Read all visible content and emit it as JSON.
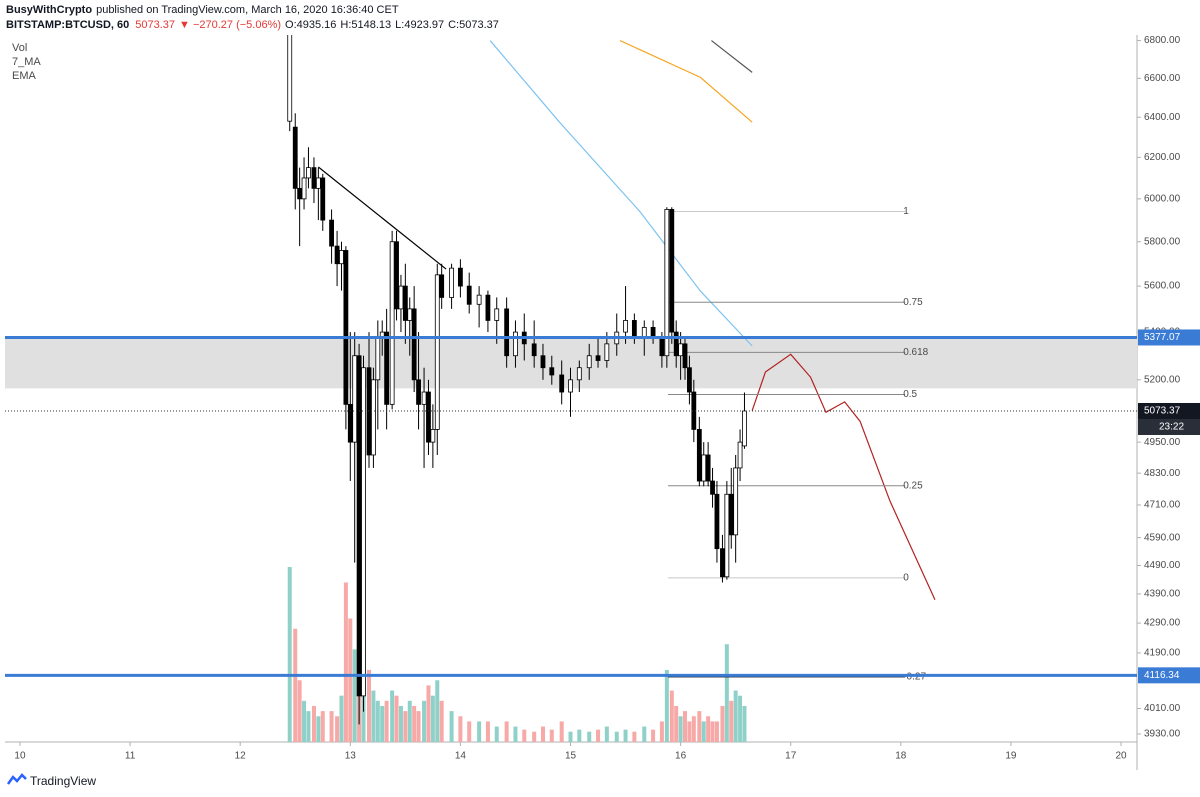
{
  "header": {
    "author": "BusyWithCrypto",
    "published": "published on TradingView.com, March 16, 2020 16:36:40 CET",
    "symbol": "BITSTAMP:BTCUSD, 60",
    "change": "▼ −270.27 (−5.06%)",
    "o": "O:4935.16",
    "h": "H:5148.13",
    "l": "L:4923.97",
    "c": "C:5073.37"
  },
  "chart_data": {
    "type": "candlestick",
    "log_scale": true,
    "legend": [
      "Vol",
      "7_MA",
      "EMA"
    ],
    "x": [
      12.45,
      12.5,
      12.54,
      12.58,
      12.62,
      12.67,
      12.71,
      12.75,
      12.83,
      12.88,
      12.92,
      12.96,
      13.0,
      13.04,
      13.08,
      13.12,
      13.17,
      13.21,
      13.25,
      13.29,
      13.33,
      13.38,
      13.42,
      13.46,
      13.5,
      13.54,
      13.58,
      13.62,
      13.67,
      13.71,
      13.75,
      13.79,
      13.83,
      13.92,
      14.0,
      14.08,
      14.17,
      14.25,
      14.33,
      14.42,
      14.5,
      14.58,
      14.67,
      14.75,
      14.83,
      14.92,
      15.0,
      15.08,
      15.17,
      15.25,
      15.33,
      15.42,
      15.5,
      15.58,
      15.67,
      15.75,
      15.83,
      15.875,
      15.92,
      15.96,
      16.0,
      16.04,
      16.08,
      16.12,
      16.17,
      16.21,
      16.25,
      16.29,
      16.33,
      16.38,
      16.42,
      16.46,
      16.5,
      16.54,
      16.58
    ],
    "open": [
      6380,
      6350,
      6050,
      6000,
      6100,
      6150,
      6050,
      6100,
      5900,
      5780,
      5700,
      5760,
      5100,
      4950,
      5300,
      4050,
      5250,
      4900,
      5200,
      5380,
      5400,
      5100,
      5800,
      5500,
      5600,
      5450,
      5500,
      5200,
      5100,
      5150,
      4950,
      5000,
      5650,
      5550,
      5680,
      5600,
      5520,
      5560,
      5450,
      5500,
      5300,
      5400,
      5350,
      5300,
      5250,
      5220,
      5150,
      5200,
      5250,
      5300,
      5280,
      5350,
      5400,
      5450,
      5380,
      5420,
      5380,
      5300,
      5950,
      5400,
      5300,
      5350,
      5250,
      5150,
      5000,
      4800,
      4900,
      4800,
      4750,
      4550,
      4450,
      4750,
      4600,
      4850,
      4935.16
    ],
    "high": [
      6900,
      6420,
      6150,
      6200,
      6250,
      6200,
      6150,
      6120,
      5950,
      5850,
      5800,
      5780,
      5400,
      5400,
      5350,
      5300,
      5400,
      5250,
      5450,
      5450,
      5500,
      5850,
      5850,
      5650,
      5700,
      5550,
      5600,
      5400,
      5250,
      5200,
      5100,
      5700,
      5700,
      5700,
      5720,
      5660,
      5600,
      5580,
      5550,
      5550,
      5450,
      5480,
      5450,
      5350,
      5300,
      5280,
      5250,
      5280,
      5350,
      5380,
      5400,
      5480,
      5600,
      5480,
      5450,
      5450,
      5400,
      5960,
      5960,
      5450,
      5400,
      5380,
      5300,
      5200,
      5050,
      4950,
      4950,
      4850,
      4800,
      4600,
      4800,
      4850,
      4900,
      5000,
      5148.13
    ],
    "low": [
      6330,
      5950,
      5780,
      5950,
      6050,
      5980,
      5900,
      5850,
      5700,
      5600,
      5580,
      5000,
      4800,
      4500,
      3960,
      4000,
      4850,
      4850,
      5000,
      5300,
      5000,
      5080,
      5450,
      5400,
      5350,
      5300,
      5150,
      5000,
      4850,
      4900,
      4850,
      4900,
      5500,
      5500,
      5550,
      5480,
      5420,
      5400,
      5350,
      5250,
      5250,
      5280,
      5250,
      5200,
      5180,
      5100,
      5050,
      5150,
      5200,
      5250,
      5250,
      5300,
      5350,
      5350,
      5300,
      5350,
      5250,
      5250,
      5350,
      5250,
      5200,
      5200,
      5100,
      4950,
      4780,
      4780,
      4780,
      4700,
      4500,
      4430,
      4440,
      4550,
      4500,
      4800,
      4923.97
    ],
    "close": [
      6850,
      6050,
      6000,
      6100,
      6150,
      6050,
      6100,
      5900,
      5780,
      5700,
      5760,
      5100,
      4950,
      5300,
      4050,
      5250,
      4900,
      5200,
      5380,
      5400,
      5100,
      5800,
      5500,
      5600,
      5450,
      5500,
      5200,
      5100,
      5150,
      4950,
      5000,
      5650,
      5550,
      5680,
      5600,
      5520,
      5560,
      5450,
      5500,
      5300,
      5400,
      5350,
      5300,
      5250,
      5220,
      5150,
      5200,
      5250,
      5300,
      5280,
      5350,
      5400,
      5450,
      5380,
      5420,
      5380,
      5300,
      5950,
      5400,
      5300,
      5350,
      5250,
      5150,
      5000,
      4800,
      4900,
      4800,
      4750,
      4550,
      4450,
      4750,
      4600,
      4850,
      4950,
      5073.37
    ],
    "volume": [
      170,
      110,
      60,
      40,
      30,
      35,
      25,
      30,
      30,
      25,
      45,
      155,
      120,
      90,
      105,
      60,
      70,
      50,
      40,
      35,
      40,
      50,
      45,
      35,
      30,
      40,
      35,
      30,
      40,
      55,
      45,
      60,
      40,
      30,
      25,
      20,
      20,
      20,
      15,
      20,
      15,
      12,
      10,
      15,
      12,
      20,
      10,
      12,
      10,
      12,
      15,
      10,
      12,
      10,
      15,
      12,
      20,
      70,
      50,
      35,
      25,
      30,
      20,
      25,
      30,
      20,
      25,
      20,
      20,
      35,
      95,
      40,
      50,
      45,
      35
    ],
    "candle_up_color": "#ffffff",
    "candle_down_color": "#000000",
    "volume_up_color": "#8fd1c8",
    "volume_down_color": "#f6a9a7",
    "xlim": [
      9.864,
      20.145
    ],
    "xticks": [
      10,
      11,
      12,
      13,
      14,
      15,
      16,
      17,
      18,
      19,
      20
    ],
    "ylim": [
      3905,
      6830
    ],
    "yticks": [
      {
        "value": 6800,
        "label": "6800.00"
      },
      {
        "value": 6600,
        "label": "6600.00"
      },
      {
        "value": 6400,
        "label": "6400.00"
      },
      {
        "value": 6200,
        "label": "6200.00"
      },
      {
        "value": 6000,
        "label": "6000.00"
      },
      {
        "value": 5800,
        "label": "5800.00"
      },
      {
        "value": 5600,
        "label": "5600.00"
      },
      {
        "value": 5400,
        "label": "5400.00"
      },
      {
        "value": 5200,
        "label": "5200.00"
      },
      {
        "value": 4950,
        "label": "4950.00"
      },
      {
        "value": 4830,
        "label": "4830.00"
      },
      {
        "value": 4710,
        "label": "4710.00"
      },
      {
        "value": 4590,
        "label": "4590.00"
      },
      {
        "value": 4490,
        "label": "4490.00"
      },
      {
        "value": 4390,
        "label": "4390.00"
      },
      {
        "value": 4290,
        "label": "4290.00"
      },
      {
        "value": 4190,
        "label": "4190.00"
      },
      {
        "value": 4010,
        "label": "4010.00"
      },
      {
        "value": 3930,
        "label": "3930.00"
      }
    ],
    "zone": [
      5165,
      5380
    ],
    "zone_color": "#e0e0e0",
    "hlines": [
      {
        "value": 5377.07,
        "color": "#3a7bd5"
      },
      {
        "value": 4116.34,
        "color": "#3a7bd5"
      }
    ],
    "countdown": "23:22",
    "lines": [
      {
        "color": "#7ec3f0",
        "x": [
          14.27,
          14.9,
          15.63,
          16.18,
          16.65
        ],
        "values": [
          6800,
          6375,
          5940,
          5578,
          5341
        ]
      },
      {
        "color": "#f5a623",
        "x": [
          15.45,
          16.18,
          16.65
        ],
        "values": [
          6800,
          6605,
          6375
        ]
      },
      {
        "color": "#555555",
        "x": [
          16.28,
          16.65
        ],
        "values": [
          6800,
          6631
        ]
      },
      {
        "color": "#000000",
        "x": [
          12.71,
          13.87
        ],
        "values": [
          6153,
          5676
        ]
      },
      {
        "color": "#b22222",
        "x": [
          16.65,
          16.77,
          17.0,
          17.18,
          17.32,
          17.49,
          17.63,
          17.9,
          18.31
        ],
        "values": [
          5075,
          5232,
          5306,
          5211,
          5068,
          5110,
          5032,
          4726,
          4370
        ]
      }
    ],
    "fib": {
      "x": [
        15.886,
        18.04
      ],
      "levels": [
        1,
        0.75,
        0.618,
        0.5,
        0.25,
        0,
        -0.27
      ],
      "prices": [
        5940,
        5529,
        5314,
        5140,
        4782,
        4446,
        4112
      ],
      "colors": [
        "#c8c8c8",
        "#888888",
        "#888888",
        "#888888",
        "#888888",
        "#c8c8c8",
        "#000000"
      ]
    }
  },
  "footer": "TradingView"
}
